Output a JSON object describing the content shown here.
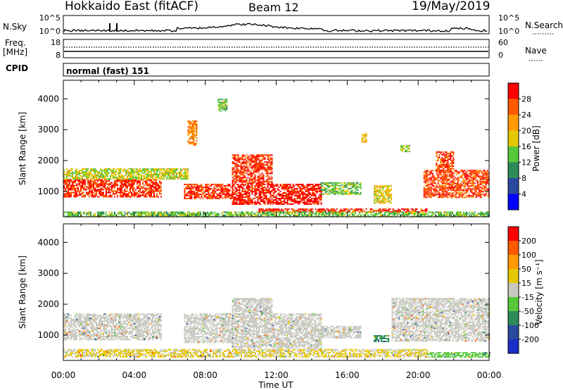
{
  "header": {
    "station": "Hokkaido East (fitACF)",
    "beam": "Beam 12",
    "date": "19/May/2019"
  },
  "strip": {
    "nsky_label": "N.Sky",
    "nsky_ticks": [
      "10^5",
      "10^0"
    ],
    "nsearch_label": "N.Search",
    "nsearch_ticks": [
      "10^5",
      "10^0"
    ],
    "freq_label": "Freq.",
    "freq_unit": "[MHz]",
    "freq_ticks": [
      "18",
      "8"
    ],
    "nave_label": "Nave",
    "nave_ticks": [
      "60",
      "0"
    ],
    "cpid_label": "CPID",
    "cpid_value": "normal (fast) 151"
  },
  "colors": {
    "power_scale": [
      "#0000ff",
      "#2a4aa0",
      "#2e8c5a",
      "#57c83a",
      "#e6c800",
      "#ff9a00",
      "#ff5a00",
      "#ff0000"
    ],
    "velocity_scale": [
      "#1c2ec8",
      "#2a4aa0",
      "#2e8c5a",
      "#57c83a",
      "#c8c8c0",
      "#e6c800",
      "#ff9a00",
      "#ff5a00",
      "#ff0000"
    ]
  },
  "chart_data": [
    {
      "type": "heatmap",
      "panel": "power",
      "ylabel": "Slant Range [km]",
      "ylim": [
        180,
        4600
      ],
      "yticks": [
        "4000",
        "3000",
        "2000",
        "1000"
      ],
      "xlim": [
        0,
        24
      ],
      "colorbar_label": "Power [dB]",
      "colorbar_ticks": [
        "28",
        "24",
        "20",
        "16",
        "12",
        "8",
        "4"
      ],
      "colorbar_range": [
        0,
        32
      ],
      "regions": [
        {
          "x": [
            0.0,
            5.5
          ],
          "y": [
            850,
            1400
          ],
          "level": 28
        },
        {
          "x": [
            0.0,
            7.0
          ],
          "y": [
            1400,
            1750
          ],
          "level": 17
        },
        {
          "x": [
            6.8,
            9.5
          ],
          "y": [
            750,
            1250
          ],
          "level": 28
        },
        {
          "x": [
            9.5,
            14.5
          ],
          "y": [
            600,
            1250
          ],
          "level": 30
        },
        {
          "x": [
            9.5,
            11.8
          ],
          "y": [
            1250,
            2200
          ],
          "level": 28
        },
        {
          "x": [
            11.0,
            12.6
          ],
          "y": [
            320,
            450
          ],
          "level": 30
        },
        {
          "x": [
            12.6,
            20.5
          ],
          "y": [
            350,
            450
          ],
          "level": 29
        },
        {
          "x": [
            14.5,
            16.8
          ],
          "y": [
            900,
            1300
          ],
          "level": 14
        },
        {
          "x": [
            17.5,
            18.5
          ],
          "y": [
            650,
            1200
          ],
          "level": 18
        },
        {
          "x": [
            20.3,
            24.0
          ],
          "y": [
            800,
            1700
          ],
          "level": 27
        },
        {
          "x": [
            21.0,
            22.0
          ],
          "y": [
            1700,
            2300
          ],
          "level": 27
        },
        {
          "x": [
            16.8,
            17.1
          ],
          "y": [
            2600,
            2900
          ],
          "level": 20
        },
        {
          "x": [
            19.0,
            19.5
          ],
          "y": [
            2300,
            2500
          ],
          "level": 14
        },
        {
          "x": [
            7.0,
            7.5
          ],
          "y": [
            2500,
            3300
          ],
          "level": 24
        },
        {
          "x": [
            8.7,
            9.2
          ],
          "y": [
            3600,
            4000
          ],
          "level": 14
        },
        {
          "x": [
            0.0,
            24.0
          ],
          "y": [
            200,
            350
          ],
          "level": 14
        }
      ]
    },
    {
      "type": "heatmap",
      "panel": "velocity",
      "ylabel": "Slant Range [km]",
      "ylim": [
        180,
        4600
      ],
      "yticks": [
        "4000",
        "3000",
        "2000",
        "1000"
      ],
      "xlim": [
        0,
        24
      ],
      "xticks": [
        "00:00",
        "04:00",
        "08:00",
        "12:00",
        "16:00",
        "20:00",
        "00:00"
      ],
      "xlabel": "Time UT",
      "colorbar_label": "Velocity [m s⁻¹]",
      "colorbar_ticks": [
        "200",
        "100",
        "50",
        "15",
        "-15",
        "-50",
        "-100",
        "-200"
      ],
      "colorbar_range": [
        -250,
        250
      ],
      "regions": [
        {
          "x": [
            0.0,
            5.5
          ],
          "y": [
            850,
            1700
          ],
          "level": 0
        },
        {
          "x": [
            6.8,
            9.5
          ],
          "y": [
            750,
            1700
          ],
          "level": 0
        },
        {
          "x": [
            9.5,
            14.5
          ],
          "y": [
            600,
            1700
          ],
          "level": 0
        },
        {
          "x": [
            9.5,
            11.8
          ],
          "y": [
            1700,
            2200
          ],
          "level": 0
        },
        {
          "x": [
            14.5,
            16.8
          ],
          "y": [
            900,
            1300
          ],
          "level": 0
        },
        {
          "x": [
            17.5,
            18.3
          ],
          "y": [
            800,
            1000
          ],
          "level": -110
        },
        {
          "x": [
            18.5,
            24.0
          ],
          "y": [
            800,
            2200
          ],
          "level": 0
        },
        {
          "x": [
            0.0,
            11.5
          ],
          "y": [
            280,
            550
          ],
          "level": 30
        },
        {
          "x": [
            11.5,
            20.5
          ],
          "y": [
            300,
            550
          ],
          "level": 30
        },
        {
          "x": [
            20.5,
            24.0
          ],
          "y": [
            300,
            450
          ],
          "level": -40
        }
      ]
    }
  ]
}
